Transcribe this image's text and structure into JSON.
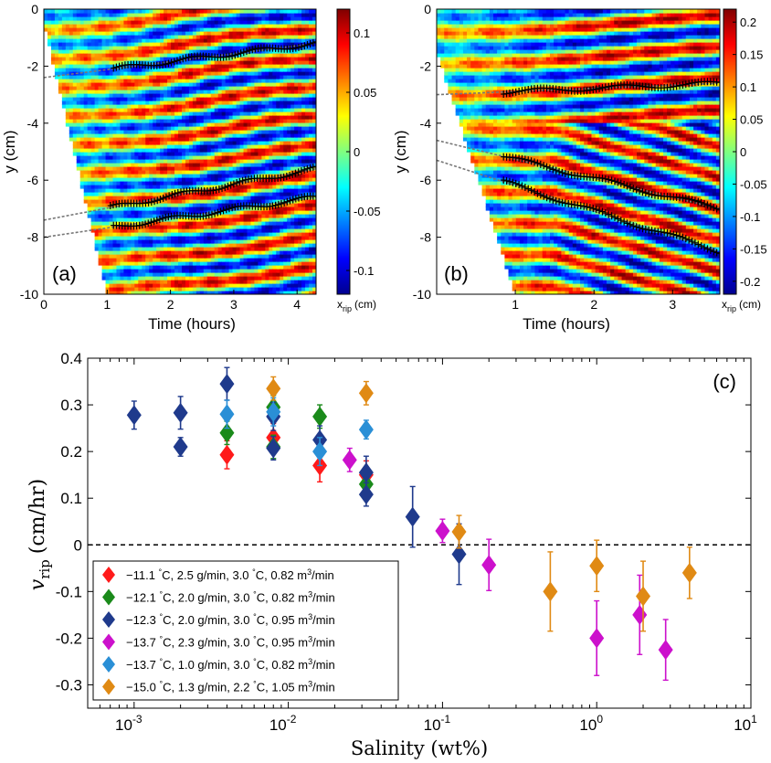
{
  "chart_data": [
    {
      "type": "heatmap",
      "panel_label": "(a)",
      "xlabel": "Time (hours)",
      "ylabel": "y (cm)",
      "xlim": [
        0,
        4.3
      ],
      "ylim": [
        -10,
        0
      ],
      "xticks": [
        "0",
        "1",
        "2",
        "3",
        "4"
      ],
      "yticks": [
        "0",
        "-2",
        "-4",
        "-6",
        "-8",
        "-10"
      ],
      "colorbar_label": "x_rip (cm)",
      "colorbar_label_main": "x",
      "colorbar_label_sub": "rip",
      "colorbar_label_unit": "(cm)",
      "colorbar_range": [
        -0.12,
        0.12
      ],
      "colorbar_ticks": [
        "0.1",
        "0.05",
        "0",
        "-0.05",
        "-0.1"
      ],
      "colorbar_tick_values": [
        0.1,
        0.05,
        0,
        -0.05,
        -0.1
      ],
      "fit_lines": [
        {
          "y_start": -2.4,
          "y_end": -1.2,
          "track_from": 1.1
        },
        {
          "y_start": -7.4,
          "y_end": -5.6,
          "track_from": 1.05
        },
        {
          "y_start": -8.0,
          "y_end": -6.6,
          "track_from": 1.1
        }
      ]
    },
    {
      "type": "heatmap",
      "panel_label": "(b)",
      "xlabel": "Time (hours)",
      "ylabel": "y (cm)",
      "xlim": [
        0,
        3.6
      ],
      "ylim": [
        -10,
        0
      ],
      "xticks": [
        "1",
        "2",
        "3"
      ],
      "yticks": [
        "0",
        "-2",
        "-4",
        "-6",
        "-8",
        "-10"
      ],
      "colorbar_label": "x_rip (cm)",
      "colorbar_label_main": "x",
      "colorbar_label_sub": "rip",
      "colorbar_label_unit": "(cm)",
      "colorbar_range": [
        -0.22,
        0.22
      ],
      "colorbar_ticks": [
        "0.2",
        "0.15",
        "0.1",
        "0.05",
        "0",
        "-0.05",
        "-0.1",
        "-0.15",
        "-0.2"
      ],
      "colorbar_tick_values": [
        0.2,
        0.15,
        0.1,
        0.05,
        0,
        -0.05,
        -0.1,
        -0.15,
        -0.2
      ],
      "fit_lines": [
        {
          "y_start": -3.0,
          "y_end": -2.6,
          "track_from": 0.85
        },
        {
          "y_start": -4.6,
          "y_end": -7.0,
          "track_from": 0.85
        },
        {
          "y_start": -5.3,
          "y_end": -8.5,
          "track_from": 0.85
        }
      ]
    },
    {
      "type": "scatter",
      "panel_label": "(c)",
      "xlabel": "Salinity (wt%)",
      "ylabel_main": "v",
      "ylabel_sub": "rip",
      "ylabel_unit": "(cm/hr)",
      "xscale": "log",
      "xlim": [
        0.0005,
        10
      ],
      "ylim": [
        -0.35,
        0.4
      ],
      "xticks": [
        {
          "base": "10",
          "exp": "-3"
        },
        {
          "base": "10",
          "exp": "-2"
        },
        {
          "base": "10",
          "exp": "-1"
        },
        {
          "base": "10",
          "exp": "0"
        },
        {
          "base": "10",
          "exp": "1"
        }
      ],
      "yticks": [
        "0.4",
        "0.3",
        "0.2",
        "0.1",
        "0",
        "-0.1",
        "-0.2",
        "-0.3"
      ],
      "ytick_values": [
        0.4,
        0.3,
        0.2,
        0.1,
        0,
        -0.1,
        -0.2,
        -0.3
      ],
      "legend_position": "bottom-left",
      "series": [
        {
          "name": "-11.1 °C, 2.5 g/min, 3.0 °C, 0.82 m³/min",
          "label": {
            "temp": "−11.1",
            "rate": "2.5",
            "water": "3.0",
            "flow": "0.82"
          },
          "color": "#ff1a1a",
          "points": [
            [
              0.004,
              0.193,
              0.03
            ],
            [
              0.008,
              0.23,
              0.03
            ],
            [
              0.016,
              0.17,
              0.035
            ],
            [
              0.032,
              0.15,
              0.03
            ]
          ]
        },
        {
          "name": "-12.1 °C, 2.0 g/min, 3.0 °C, 0.82 m³/min",
          "label": {
            "temp": "−12.1",
            "rate": "2.0",
            "water": "3.0",
            "flow": "0.82"
          },
          "color": "#1a8a1a",
          "points": [
            [
              0.004,
              0.24,
              0.025
            ],
            [
              0.008,
              0.295,
              0.025
            ],
            [
              0.008,
              0.21,
              0.025
            ],
            [
              0.016,
              0.275,
              0.025
            ],
            [
              0.032,
              0.13,
              0.025
            ]
          ]
        },
        {
          "name": "-12.3 °C, 2.0 g/min, 3.0 °C, 0.95 m³/min",
          "label": {
            "temp": "−12.3",
            "rate": "2.0",
            "water": "3.0",
            "flow": "0.95"
          },
          "color": "#1f3a8c",
          "points": [
            [
              0.001,
              0.278,
              0.03
            ],
            [
              0.002,
              0.283,
              0.035
            ],
            [
              0.002,
              0.21,
              0.02
            ],
            [
              0.004,
              0.345,
              0.035
            ],
            [
              0.008,
              0.275,
              0.03
            ],
            [
              0.008,
              0.207,
              0.025
            ],
            [
              0.016,
              0.225,
              0.03
            ],
            [
              0.032,
              0.155,
              0.035
            ],
            [
              0.032,
              0.108,
              0.025
            ],
            [
              0.064,
              0.06,
              0.065
            ],
            [
              0.128,
              -0.02,
              0.065
            ]
          ]
        },
        {
          "name": "-13.7 °C, 2.3 g/min, 3.0 °C, 0.95 m³/min",
          "label": {
            "temp": "−13.7",
            "rate": "2.3",
            "water": "3.0",
            "flow": "0.95"
          },
          "color": "#cc11cc",
          "points": [
            [
              0.025,
              0.182,
              0.025
            ],
            [
              0.1,
              0.03,
              0.025
            ],
            [
              0.2,
              -0.043,
              0.055
            ],
            [
              1.0,
              -0.2,
              0.08
            ],
            [
              1.9,
              -0.15,
              0.085
            ],
            [
              2.8,
              -0.225,
              0.065
            ]
          ]
        },
        {
          "name": "-13.7 °C, 1.0 g/min, 3.0 °C, 0.82 m³/min",
          "label": {
            "temp": "−13.7",
            "rate": "1.0",
            "water": "3.0",
            "flow": "0.82"
          },
          "color": "#2a8fd6",
          "points": [
            [
              0.004,
              0.28,
              0.03
            ],
            [
              0.008,
              0.285,
              0.03
            ],
            [
              0.016,
              0.2,
              0.03
            ],
            [
              0.032,
              0.247,
              0.02
            ]
          ]
        },
        {
          "name": "-15.0 °C, 1.3 g/min, 2.2 °C, 1.05 m³/min",
          "label": {
            "temp": "−15.0",
            "rate": "1.3",
            "water": "2.2",
            "flow": "1.05"
          },
          "color": "#e08a14",
          "points": [
            [
              0.008,
              0.335,
              0.025
            ],
            [
              0.032,
              0.325,
              0.025
            ],
            [
              0.128,
              0.028,
              0.035
            ],
            [
              0.5,
              -0.1,
              0.085
            ],
            [
              1.0,
              -0.045,
              0.055
            ],
            [
              2.0,
              -0.11,
              0.075
            ],
            [
              4.0,
              -0.06,
              0.055
            ]
          ]
        }
      ]
    }
  ]
}
